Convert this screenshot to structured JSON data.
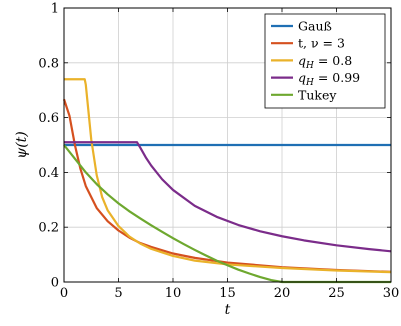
{
  "chart_data": {
    "type": "line",
    "title": "",
    "xlabel": "t",
    "ylabel": "ψ(t)",
    "xlim": [
      0,
      30
    ],
    "ylim": [
      0,
      1
    ],
    "xticks": [
      0,
      5,
      10,
      15,
      20,
      25,
      30
    ],
    "yticks": [
      0,
      0.2,
      0.4,
      0.6,
      0.8,
      1
    ],
    "xtick_labels": [
      "0",
      "5",
      "10",
      "15",
      "20",
      "25",
      "30"
    ],
    "ytick_labels": [
      "0",
      "0.2",
      "0.4",
      "0.6",
      "0.8",
      "1"
    ],
    "grid": true,
    "legend_position": "top-right",
    "series": [
      {
        "name": "Gauß",
        "color": "#1f6fb4",
        "x": [
          0,
          30
        ],
        "y": [
          0.5,
          0.5
        ]
      },
      {
        "name": "t, ν = 3",
        "color": "#d5501f",
        "x": [
          0,
          0.5,
          1,
          1.5,
          2,
          3,
          4,
          5,
          6,
          7,
          8,
          10,
          12,
          15,
          20,
          25,
          30
        ],
        "y": [
          0.667,
          0.607,
          0.5,
          0.414,
          0.35,
          0.27,
          0.222,
          0.188,
          0.162,
          0.142,
          0.128,
          0.104,
          0.088,
          0.071,
          0.054,
          0.044,
          0.037
        ]
      },
      {
        "name": "q_H = 0.8",
        "color": "#eab22a",
        "x": [
          0,
          1.9,
          2,
          2.5,
          3,
          3.5,
          4,
          5,
          6,
          7,
          8,
          10,
          12,
          15,
          20,
          25,
          30
        ],
        "y": [
          0.74,
          0.74,
          0.72,
          0.52,
          0.39,
          0.31,
          0.262,
          0.204,
          0.166,
          0.14,
          0.121,
          0.095,
          0.078,
          0.064,
          0.051,
          0.042,
          0.036
        ]
      },
      {
        "name": "q_H = 0.99",
        "color": "#7b2c8a",
        "x": [
          0,
          6.7,
          7,
          7.5,
          8,
          9,
          10,
          12,
          14,
          16,
          18,
          20,
          22,
          25,
          28,
          30
        ],
        "y": [
          0.51,
          0.51,
          0.49,
          0.455,
          0.425,
          0.375,
          0.336,
          0.278,
          0.238,
          0.208,
          0.185,
          0.167,
          0.152,
          0.134,
          0.12,
          0.112
        ]
      },
      {
        "name": "Tukey",
        "color": "#6ea82f",
        "x": [
          0,
          1,
          2,
          3,
          4,
          5,
          6,
          7,
          8,
          9,
          10,
          11,
          12,
          13,
          14,
          15,
          16,
          17,
          18,
          19,
          20,
          22,
          25,
          30
        ],
        "y": [
          0.5,
          0.45,
          0.4,
          0.357,
          0.32,
          0.287,
          0.258,
          0.232,
          0.207,
          0.183,
          0.16,
          0.138,
          0.117,
          0.097,
          0.078,
          0.061,
          0.045,
          0.031,
          0.018,
          0.007,
          0.0,
          0.0,
          0.0,
          0.0
        ]
      }
    ]
  }
}
